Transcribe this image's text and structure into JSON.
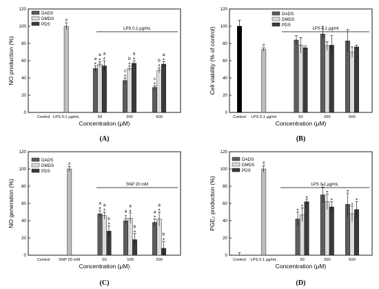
{
  "chart_data": [
    {
      "panel": "(A)",
      "type": "bar",
      "ylabel": "NO production (%)",
      "xlabel": "Concentration (μM)",
      "ylim": [
        0,
        120
      ],
      "yticks": [
        0,
        20,
        40,
        60,
        80,
        100,
        120
      ],
      "grid": false,
      "legend_position": "top-left",
      "bracket_label": "LPS 0.1 μg/mL",
      "groups": [
        {
          "label": "Control",
          "bars": [
            {
              "series": "control",
              "value": 0,
              "err": 0
            }
          ]
        },
        {
          "label": "LPS 0.1 μg/mL",
          "bars": [
            {
              "series": "LPS",
              "value": 100,
              "err": 4,
              "annot": [
                "#"
              ]
            }
          ]
        },
        {
          "label": "50",
          "bars": [
            {
              "series": "DADS",
              "value": 51,
              "err": 3,
              "annot": [
                "*",
                "a"
              ]
            },
            {
              "series": "DMDS",
              "value": 56,
              "err": 3,
              "annot": [
                "*",
                "a"
              ]
            },
            {
              "series": "PDS",
              "value": 54,
              "err": 6,
              "annot": [
                "*",
                "a"
              ]
            }
          ]
        },
        {
          "label": "200",
          "bars": [
            {
              "series": "DADS",
              "value": 37,
              "err": 3,
              "annot": [
                "*",
                "c"
              ]
            },
            {
              "series": "DMDS",
              "value": 51,
              "err": 3,
              "annot": [
                "*",
                "b"
              ]
            },
            {
              "series": "PDS",
              "value": 57,
              "err": 3,
              "annot": [
                "*",
                "a"
              ]
            }
          ]
        },
        {
          "label": "500",
          "bars": [
            {
              "series": "DADS",
              "value": 29,
              "err": 2,
              "annot": [
                "*",
                "c"
              ]
            },
            {
              "series": "DMDS",
              "value": 49,
              "err": 3,
              "annot": [
                "*",
                "b"
              ]
            },
            {
              "series": "PDS",
              "value": 56,
              "err": 3,
              "annot": [
                "*",
                "a"
              ]
            }
          ]
        }
      ]
    },
    {
      "panel": "(B)",
      "type": "bar",
      "ylabel": "Cell viability (% of control)",
      "xlabel": "Concentration (μM)",
      "ylim": [
        0,
        120
      ],
      "yticks": [
        0,
        20,
        40,
        60,
        80,
        100,
        120
      ],
      "grid": false,
      "legend_position": "top-center",
      "bracket_label": "LPS 0.1 μg/ml",
      "groups": [
        {
          "label": "Control",
          "bars": [
            {
              "series": "control",
              "value": 100,
              "err": 7
            }
          ]
        },
        {
          "label": "LPS 0.1 μg/ml",
          "bars": [
            {
              "series": "LPS",
              "value": 73,
              "err": 2,
              "annot": [
                "#"
              ]
            }
          ]
        },
        {
          "label": "50",
          "bars": [
            {
              "series": "DADS",
              "value": 84,
              "err": 5
            },
            {
              "series": "DMDS",
              "value": 78,
              "err": 9
            },
            {
              "series": "PDS",
              "value": 75,
              "err": 2
            }
          ]
        },
        {
          "label": "200",
          "bars": [
            {
              "series": "DADS",
              "value": 91,
              "err": 6,
              "annot": [
                "*"
              ]
            },
            {
              "series": "DMDS",
              "value": 77,
              "err": 5
            },
            {
              "series": "PDS",
              "value": 78,
              "err": 11
            }
          ]
        },
        {
          "label": "500",
          "bars": [
            {
              "series": "DADS",
              "value": 83,
              "err": 13
            },
            {
              "series": "DMDS",
              "value": 70,
              "err": 6
            },
            {
              "series": "PDS",
              "value": 76,
              "err": 2
            }
          ]
        }
      ]
    },
    {
      "panel": "(C)",
      "type": "bar",
      "ylabel": "NO generation (%)",
      "xlabel": "Concentration (μM)",
      "ylim": [
        0,
        120
      ],
      "yticks": [
        0,
        20,
        40,
        60,
        80,
        100,
        120
      ],
      "grid": false,
      "legend_position": "top-left",
      "bracket_label": "SNP 20 mM",
      "groups": [
        {
          "label": "Control",
          "bars": [
            {
              "series": "control",
              "value": 0,
              "err": 0
            }
          ]
        },
        {
          "label": "SNP 20 mM",
          "bars": [
            {
              "series": "LPS",
              "value": 100,
              "err": 3,
              "annot": [
                "#"
              ]
            }
          ]
        },
        {
          "label": "50",
          "bars": [
            {
              "series": "DADS",
              "value": 48,
              "err": 4,
              "annot": [
                "*",
                "a"
              ]
            },
            {
              "series": "DMDS",
              "value": 46,
              "err": 4,
              "annot": [
                "*",
                "a"
              ]
            },
            {
              "series": "PDS",
              "value": 28,
              "err": 6,
              "annot": [
                "*",
                "b"
              ]
            }
          ]
        },
        {
          "label": "100",
          "bars": [
            {
              "series": "DADS",
              "value": 40,
              "err": 3,
              "annot": [
                "*",
                "a"
              ]
            },
            {
              "series": "DMDS",
              "value": 43,
              "err": 6,
              "annot": [
                "*",
                "a"
              ]
            },
            {
              "series": "PDS",
              "value": 18,
              "err": 7,
              "annot": [
                "*",
                "b"
              ]
            }
          ]
        },
        {
          "label": "200",
          "bars": [
            {
              "series": "DADS",
              "value": 38,
              "err": 4,
              "annot": [
                "*",
                "a"
              ]
            },
            {
              "series": "DMDS",
              "value": 42,
              "err": 8,
              "annot": [
                "*",
                "a"
              ]
            },
            {
              "series": "PDS",
              "value": 8,
              "err": 8,
              "annot": [
                "*",
                "b"
              ]
            }
          ]
        }
      ]
    },
    {
      "panel": "(D)",
      "type": "bar",
      "ylabel": "PGE₂ production (%)",
      "xlabel": "Concentration (μM)",
      "ylim": [
        0,
        120
      ],
      "yticks": [
        0,
        20,
        40,
        60,
        80,
        100,
        120
      ],
      "grid": false,
      "legend_position": "top-left",
      "bracket_label": "LPS 0.1 μg/mL",
      "groups": [
        {
          "label": "Control",
          "bars": [
            {
              "series": "control",
              "value": 0,
              "err": 3
            }
          ]
        },
        {
          "label": "LPS 0.1 μg/mL",
          "bars": [
            {
              "series": "LPS",
              "value": 100,
              "err": 4,
              "annot": [
                "#"
              ]
            }
          ]
        },
        {
          "label": "50",
          "bars": [
            {
              "series": "DADS",
              "value": 42,
              "err": 8,
              "annot": [
                "*"
              ]
            },
            {
              "series": "DMDS",
              "value": 47,
              "err": 8,
              "annot": [
                "*"
              ]
            },
            {
              "series": "PDS",
              "value": 62,
              "err": 3,
              "annot": [
                "*"
              ]
            }
          ]
        },
        {
          "label": "200",
          "bars": [
            {
              "series": "DADS",
              "value": 70,
              "err": 9,
              "annot": [
                "*"
              ]
            },
            {
              "series": "DMDS",
              "value": 62,
              "err": 9,
              "annot": [
                "*"
              ]
            },
            {
              "series": "PDS",
              "value": 56,
              "err": 6,
              "annot": [
                "*"
              ]
            }
          ]
        },
        {
          "label": "500",
          "bars": [
            {
              "series": "DADS",
              "value": 59,
              "err": 13,
              "annot": [
                "*"
              ]
            },
            {
              "series": "DMDS",
              "value": 48,
              "err": 9,
              "annot": [
                "*"
              ]
            },
            {
              "series": "PDS",
              "value": 53,
              "err": 9,
              "annot": [
                "*"
              ]
            }
          ]
        }
      ]
    }
  ],
  "legend": [
    {
      "series": "DADS",
      "label": "DADS"
    },
    {
      "series": "DMDS",
      "label": "DMDS"
    },
    {
      "series": "PDS",
      "label": "PDS"
    }
  ],
  "colors": {
    "DADS": "#5d5d5d",
    "DMDS": "#dcdcdc",
    "PDS": "#3b3b3b",
    "LPS": "#bdbdbd",
    "control": "#000000",
    "axis": "#000000",
    "text": "#000000"
  }
}
